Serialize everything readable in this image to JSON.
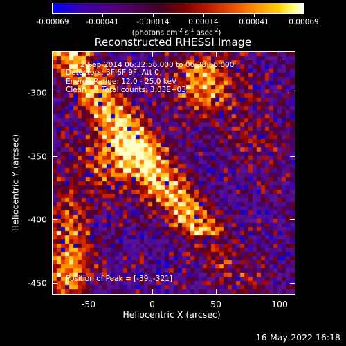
{
  "colorbar": {
    "tick_labels": [
      "-0.00069",
      "-0.00041",
      "-0.00014",
      "0.00014",
      "0.00041",
      "0.00069"
    ],
    "units_prefix": "(photons cm",
    "units_exp1": "-2",
    "units_mid": " s",
    "units_exp2": "-1",
    "units_mid2": " asec",
    "units_exp3": "-2",
    "units_suffix": ")",
    "colors": [
      "#0000ff",
      "#50007a",
      "#7a0000",
      "#f05000",
      "#ffd000",
      "#ffffff"
    ]
  },
  "title": "Reconstructed RHESSI Image",
  "annotations": {
    "time_range": "2-Sep-2014 06:32:56.000 to 06:38:56.000",
    "detectors": "Detectors: 3F 6F 9F, Att 0",
    "energy": "Energy Range: 12.0 - 25.0 keV",
    "clean_label": "Clean",
    "total_counts": "Total counts: 3.03E+03",
    "peak": "Position of Peak = [-39.,-321]"
  },
  "x_axis": {
    "label": "Heliocentric X (arcsec)",
    "ticks": [
      "-50",
      "0",
      "50",
      "100"
    ]
  },
  "y_axis": {
    "label": "Heliocentric Y (arcsec)",
    "ticks": [
      "-300",
      "-350",
      "-400",
      "-450"
    ]
  },
  "datestamp": "16-May-2022 16:18",
  "chart_data": {
    "type": "heatmap",
    "title": "Reconstructed RHESSI Image",
    "xlabel": "Heliocentric X (arcsec)",
    "ylabel": "Heliocentric Y (arcsec)",
    "xlim": [
      -83,
      112
    ],
    "ylim": [
      -465,
      -270
    ],
    "value_range": [
      -0.00069,
      0.00069
    ],
    "peak_position": [
      -39,
      -321
    ],
    "grid": false
  }
}
